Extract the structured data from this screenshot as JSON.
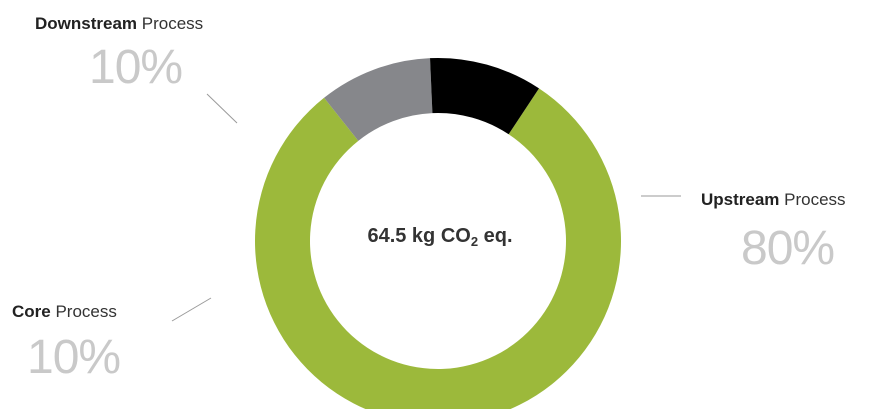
{
  "chart_data": {
    "type": "donut",
    "center_label": {
      "value_text": "64.5 kg CO",
      "subscript": "2",
      "suffix": " eq."
    },
    "segments": [
      {
        "name_bold": "Upstream",
        "name_rest": " Process",
        "value": 80,
        "value_text": "80%",
        "color": "#9cb93b"
      },
      {
        "name_bold": "Core",
        "name_rest": " Process",
        "value": 10,
        "value_text": "10%",
        "color": "#86878b"
      },
      {
        "name_bold": "Downstream",
        "name_rest": " Process",
        "value": 10,
        "value_text": "10%",
        "color": "#000000"
      }
    ]
  }
}
